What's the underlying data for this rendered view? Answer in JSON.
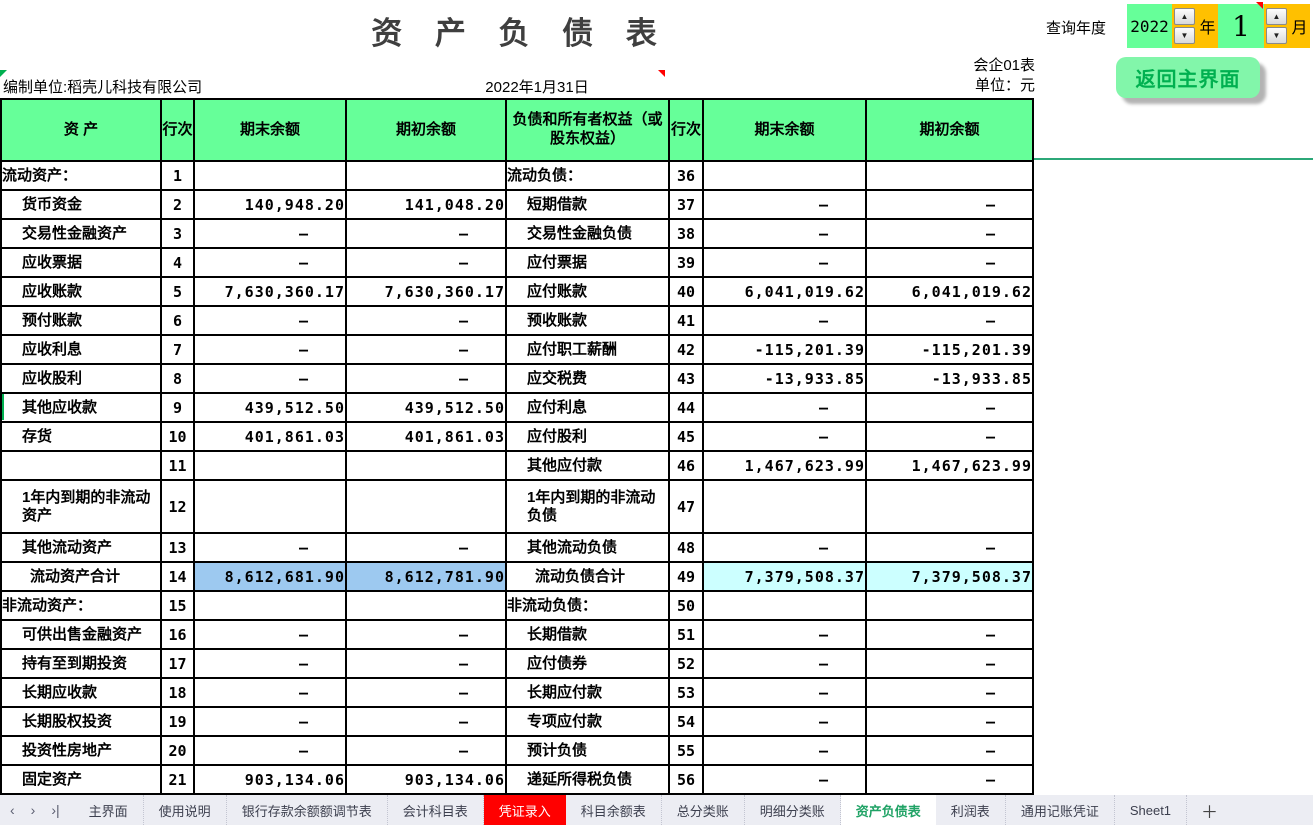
{
  "title": "资 产 负 债 表",
  "query": {
    "label": "查询年度",
    "year": "2022",
    "year_unit": "年",
    "month": "1",
    "month_unit": "月",
    "spinner_up_icon": "▲",
    "spinner_down_icon": "▼"
  },
  "meta": {
    "form_no": "会企01表",
    "unit": "单位：元",
    "prepared_by": "编制单位:稻壳儿科技有限公司",
    "date": "2022年1月31日",
    "return_button": "返回主界面"
  },
  "colors": {
    "header_green": "#66FF99",
    "control_orange": "#FFC000",
    "total_blue": "#9DC9F0",
    "total_cyan": "#CCFFFF",
    "active_tab_green": "#21A366",
    "red_tab": "#FF0000",
    "button_text_green": "#00B050"
  },
  "table": {
    "headers": {
      "asset": "资 产",
      "line": "行次",
      "ending": "期末余额",
      "beginning": "期初余额",
      "liability": "负债和所有者权益（或股东权益）"
    },
    "rows": [
      {
        "left": {
          "name": "流动资产：",
          "type": "section",
          "line": "1",
          "end": "",
          "beg": ""
        },
        "right": {
          "name": "流动负债：",
          "type": "section",
          "line": "36",
          "end": "",
          "beg": ""
        }
      },
      {
        "left": {
          "name": "货币资金",
          "type": "item",
          "line": "2",
          "end": "140,948.20",
          "beg": "141,048.20"
        },
        "right": {
          "name": "短期借款",
          "type": "item",
          "line": "37",
          "end": "–",
          "beg": "–"
        }
      },
      {
        "left": {
          "name": "交易性金融资产",
          "type": "item",
          "line": "3",
          "end": "–",
          "beg": "–"
        },
        "right": {
          "name": "交易性金融负债",
          "type": "item",
          "line": "38",
          "end": "–",
          "beg": "–"
        }
      },
      {
        "left": {
          "name": "应收票据",
          "type": "item",
          "line": "4",
          "end": "–",
          "beg": "–"
        },
        "right": {
          "name": "应付票据",
          "type": "item",
          "line": "39",
          "end": "–",
          "beg": "–"
        }
      },
      {
        "left": {
          "name": "应收账款",
          "type": "item",
          "line": "5",
          "end": "7,630,360.17",
          "beg": "7,630,360.17"
        },
        "right": {
          "name": "应付账款",
          "type": "item",
          "line": "40",
          "end": "6,041,019.62",
          "beg": "6,041,019.62"
        }
      },
      {
        "left": {
          "name": "预付账款",
          "type": "item",
          "line": "6",
          "end": "–",
          "beg": "–"
        },
        "right": {
          "name": "预收账款",
          "type": "item",
          "line": "41",
          "end": "–",
          "beg": "–"
        }
      },
      {
        "left": {
          "name": "应收利息",
          "type": "item",
          "line": "7",
          "end": "–",
          "beg": "–"
        },
        "right": {
          "name": "应付职工薪酬",
          "type": "item",
          "line": "42",
          "end": "-115,201.39",
          "beg": "-115,201.39"
        }
      },
      {
        "left": {
          "name": "应收股利",
          "type": "item",
          "line": "8",
          "end": "–",
          "beg": "–"
        },
        "right": {
          "name": "应交税费",
          "type": "item",
          "line": "43",
          "end": "-13,933.85",
          "beg": "-13,933.85"
        }
      },
      {
        "left": {
          "name": "其他应收款",
          "type": "item",
          "line": "9",
          "end": "439,512.50",
          "beg": "439,512.50"
        },
        "right": {
          "name": "应付利息",
          "type": "item",
          "line": "44",
          "end": "–",
          "beg": "–"
        }
      },
      {
        "left": {
          "name": "存货",
          "type": "item",
          "line": "10",
          "end": "401,861.03",
          "beg": "401,861.03"
        },
        "right": {
          "name": "应付股利",
          "type": "item",
          "line": "45",
          "end": "–",
          "beg": "–"
        }
      },
      {
        "left": {
          "name": "",
          "type": "blank",
          "line": "11",
          "end": "",
          "beg": ""
        },
        "right": {
          "name": "其他应付款",
          "type": "item",
          "line": "46",
          "end": "1,467,623.99",
          "beg": "1,467,623.99"
        }
      },
      {
        "tall": true,
        "left": {
          "name": "1年内到期的非流动资产",
          "type": "item",
          "line": "12",
          "end": "",
          "beg": ""
        },
        "right": {
          "name": "1年内到期的非流动负债",
          "type": "item",
          "line": "47",
          "end": "",
          "beg": ""
        }
      },
      {
        "left": {
          "name": "其他流动资产",
          "type": "item",
          "line": "13",
          "end": "–",
          "beg": "–"
        },
        "right": {
          "name": "其他流动负债",
          "type": "item",
          "line": "48",
          "end": "–",
          "beg": "–"
        }
      },
      {
        "left": {
          "name": "流动资产合计",
          "type": "total",
          "hl": "blue",
          "line": "14",
          "end": "8,612,681.90",
          "beg": "8,612,781.90"
        },
        "right": {
          "name": "流动负债合计",
          "type": "total",
          "hl": "cyan",
          "line": "49",
          "end": "7,379,508.37",
          "beg": "7,379,508.37"
        }
      },
      {
        "left": {
          "name": "非流动资产：",
          "type": "section",
          "line": "15",
          "end": "",
          "beg": ""
        },
        "right": {
          "name": "非流动负债：",
          "type": "section",
          "line": "50",
          "end": "",
          "beg": ""
        }
      },
      {
        "left": {
          "name": "可供出售金融资产",
          "type": "item",
          "line": "16",
          "end": "–",
          "beg": "–"
        },
        "right": {
          "name": "长期借款",
          "type": "item",
          "line": "51",
          "end": "–",
          "beg": "–"
        }
      },
      {
        "left": {
          "name": "持有至到期投资",
          "type": "item",
          "line": "17",
          "end": "–",
          "beg": "–"
        },
        "right": {
          "name": "应付债券",
          "type": "item",
          "line": "52",
          "end": "–",
          "beg": "–"
        }
      },
      {
        "left": {
          "name": "长期应收款",
          "type": "item",
          "line": "18",
          "end": "–",
          "beg": "–"
        },
        "right": {
          "name": "长期应付款",
          "type": "item",
          "line": "53",
          "end": "–",
          "beg": "–"
        }
      },
      {
        "left": {
          "name": "长期股权投资",
          "type": "item",
          "line": "19",
          "end": "–",
          "beg": "–"
        },
        "right": {
          "name": "专项应付款",
          "type": "item",
          "line": "54",
          "end": "–",
          "beg": "–"
        }
      },
      {
        "left": {
          "name": "投资性房地产",
          "type": "item",
          "line": "20",
          "end": "–",
          "beg": "–"
        },
        "right": {
          "name": "预计负债",
          "type": "item",
          "line": "55",
          "end": "–",
          "beg": "–"
        }
      },
      {
        "left": {
          "name": "固定资产",
          "type": "item",
          "line": "21",
          "end": "903,134.06",
          "beg": "903,134.06"
        },
        "right": {
          "name": "递延所得税负债",
          "type": "item",
          "line": "56",
          "end": "–",
          "beg": "–"
        }
      }
    ]
  },
  "tabbar": {
    "nav": [
      "‹",
      "›",
      "›|"
    ],
    "tabs": [
      {
        "label": "主界面",
        "style": "normal"
      },
      {
        "label": "使用说明",
        "style": "normal"
      },
      {
        "label": "银行存款余额额调节表",
        "style": "normal"
      },
      {
        "label": "会计科目表",
        "style": "normal"
      },
      {
        "label": "凭证录入",
        "style": "red"
      },
      {
        "label": "科目余额表",
        "style": "normal"
      },
      {
        "label": "总分类账",
        "style": "normal"
      },
      {
        "label": "明细分类账",
        "style": "normal"
      },
      {
        "label": "资产负债表",
        "style": "active"
      },
      {
        "label": "利润表",
        "style": "normal"
      },
      {
        "label": "通用记账凭证",
        "style": "normal"
      },
      {
        "label": "Sheet1",
        "style": "normal"
      }
    ],
    "add_label": "＋"
  }
}
